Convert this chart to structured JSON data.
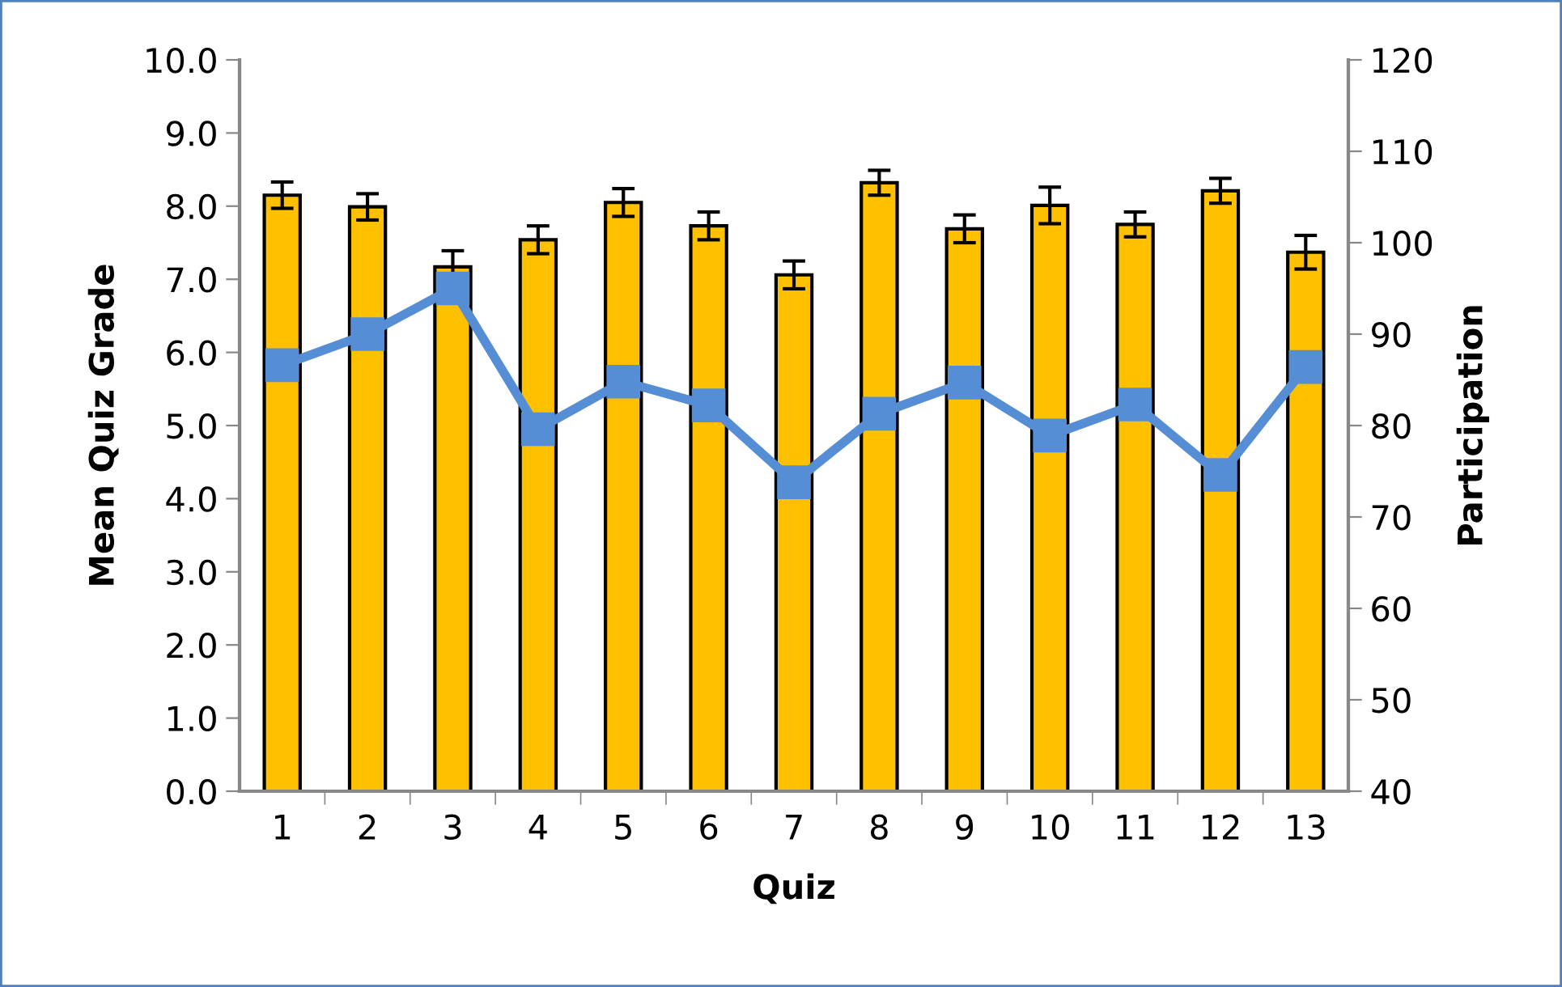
{
  "chart_data": {
    "type": "bar",
    "xlabel": "Quiz",
    "ylabel": "Mean Quiz Grade",
    "y2label": "Participation",
    "categories": [
      "1",
      "2",
      "3",
      "4",
      "5",
      "6",
      "7",
      "8",
      "9",
      "10",
      "11",
      "12",
      "13"
    ],
    "series": [
      {
        "color": "#ffc000",
        "values": [
          8.15,
          7.99,
          7.17,
          7.54,
          8.05,
          7.73,
          7.06,
          8.32,
          7.69,
          8.01,
          7.75,
          8.21,
          7.37
        ],
        "errors": [
          0.18,
          0.18,
          0.22,
          0.19,
          0.19,
          0.19,
          0.19,
          0.17,
          0.19,
          0.25,
          0.17,
          0.17,
          0.23
        ]
      },
      {
        "type": "line",
        "axis": "y2",
        "color": "#558ed5",
        "marker": "square",
        "line_style": "solid",
        "values": [
          86.6,
          90.0,
          95.0,
          79.6,
          84.8,
          82.2,
          73.8,
          81.3,
          84.7,
          78.9,
          82.3,
          74.6,
          86.4
        ]
      }
    ],
    "ylim": [
      0,
      10
    ],
    "yticks": [
      {
        "value": 0,
        "label": "0.0"
      },
      {
        "value": 1,
        "label": "1.0"
      },
      {
        "value": 2,
        "label": "2.0"
      },
      {
        "value": 3,
        "label": "3.0"
      },
      {
        "value": 4,
        "label": "4.0"
      },
      {
        "value": 5,
        "label": "5.0"
      },
      {
        "value": 6,
        "label": "6.0"
      },
      {
        "value": 7,
        "label": "7.0"
      },
      {
        "value": 8,
        "label": "8.0"
      },
      {
        "value": 9,
        "label": "9.0"
      },
      {
        "value": 10,
        "label": "10.0"
      }
    ],
    "y2lim": [
      40,
      120
    ],
    "y2ticks": [
      40,
      50,
      60,
      70,
      80,
      90,
      100,
      110,
      120
    ],
    "grid": false,
    "legend": false
  }
}
